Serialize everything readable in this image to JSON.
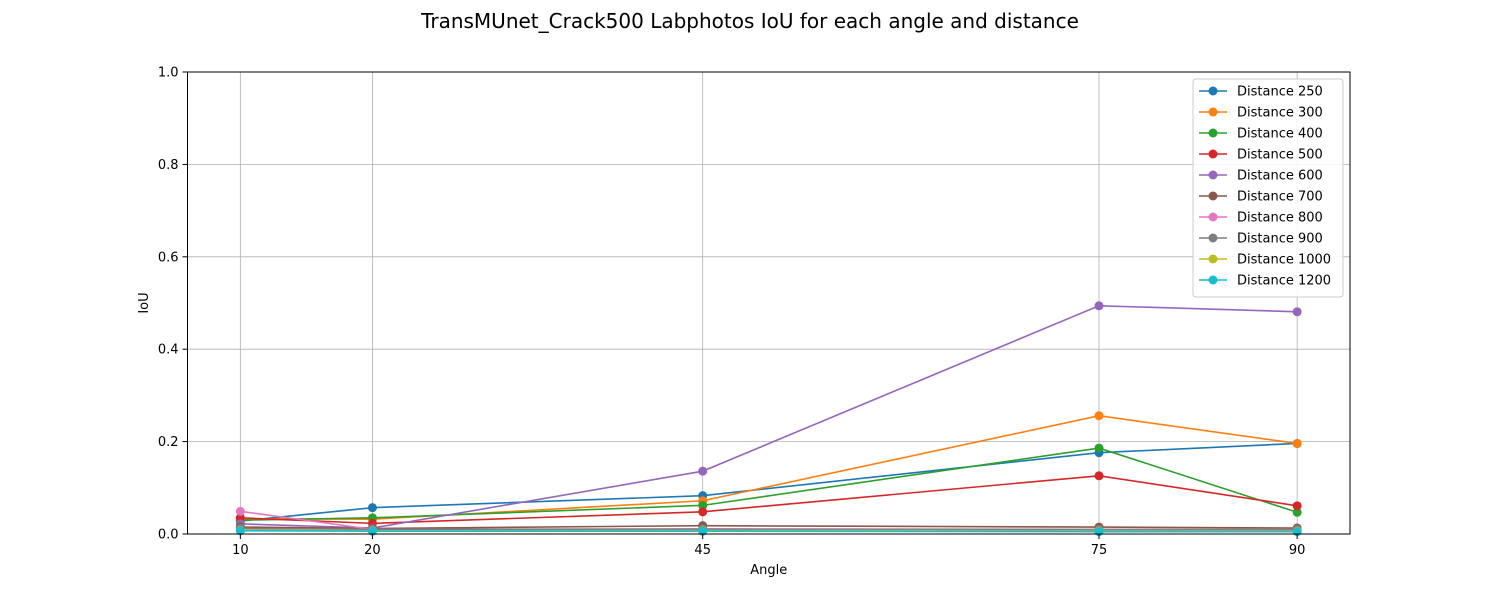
{
  "chart_data": {
    "type": "line",
    "title": "TransMUnet_Crack500 Labphotos IoU for each angle and distance",
    "xlabel": "Angle",
    "ylabel": "IoU",
    "x": [
      10,
      20,
      45,
      75,
      90
    ],
    "xticks": [
      "10",
      "20",
      "45",
      "75",
      "90"
    ],
    "xlim": [
      6,
      94
    ],
    "ylim": [
      0,
      1
    ],
    "yticks": [
      "0.0",
      "0.2",
      "0.4",
      "0.6",
      "0.8",
      "1.0"
    ],
    "grid": true,
    "legend_position": "top-right",
    "series": [
      {
        "name": "Distance 250",
        "color": "#1f77b4",
        "values": [
          0.028,
          0.057,
          0.083,
          0.176,
          0.196
        ]
      },
      {
        "name": "Distance 300",
        "color": "#ff7f0e",
        "values": [
          0.033,
          0.032,
          0.072,
          0.256,
          0.196
        ]
      },
      {
        "name": "Distance 400",
        "color": "#2ca02c",
        "values": [
          0.03,
          0.035,
          0.062,
          0.186,
          0.047
        ]
      },
      {
        "name": "Distance 500",
        "color": "#d62728",
        "values": [
          0.035,
          0.023,
          0.048,
          0.126,
          0.061
        ]
      },
      {
        "name": "Distance 600",
        "color": "#9467bd",
        "values": [
          0.022,
          0.013,
          0.136,
          0.494,
          0.481
        ]
      },
      {
        "name": "Distance 700",
        "color": "#8c564b",
        "values": [
          0.015,
          0.012,
          0.018,
          0.015,
          0.013
        ]
      },
      {
        "name": "Distance 800",
        "color": "#e377c2",
        "values": [
          0.049,
          0.01,
          0.01,
          0.009,
          0.008
        ]
      },
      {
        "name": "Distance 900",
        "color": "#7f7f7f",
        "values": [
          0.012,
          0.01,
          0.011,
          0.01,
          0.01
        ]
      },
      {
        "name": "Distance 1000",
        "color": "#bcbd22",
        "values": [
          0.008,
          0.007,
          0.007,
          0.006,
          0.006
        ]
      },
      {
        "name": "Distance 1200",
        "color": "#17becf",
        "values": [
          0.007,
          0.006,
          0.006,
          0.005,
          0.005
        ]
      }
    ]
  }
}
